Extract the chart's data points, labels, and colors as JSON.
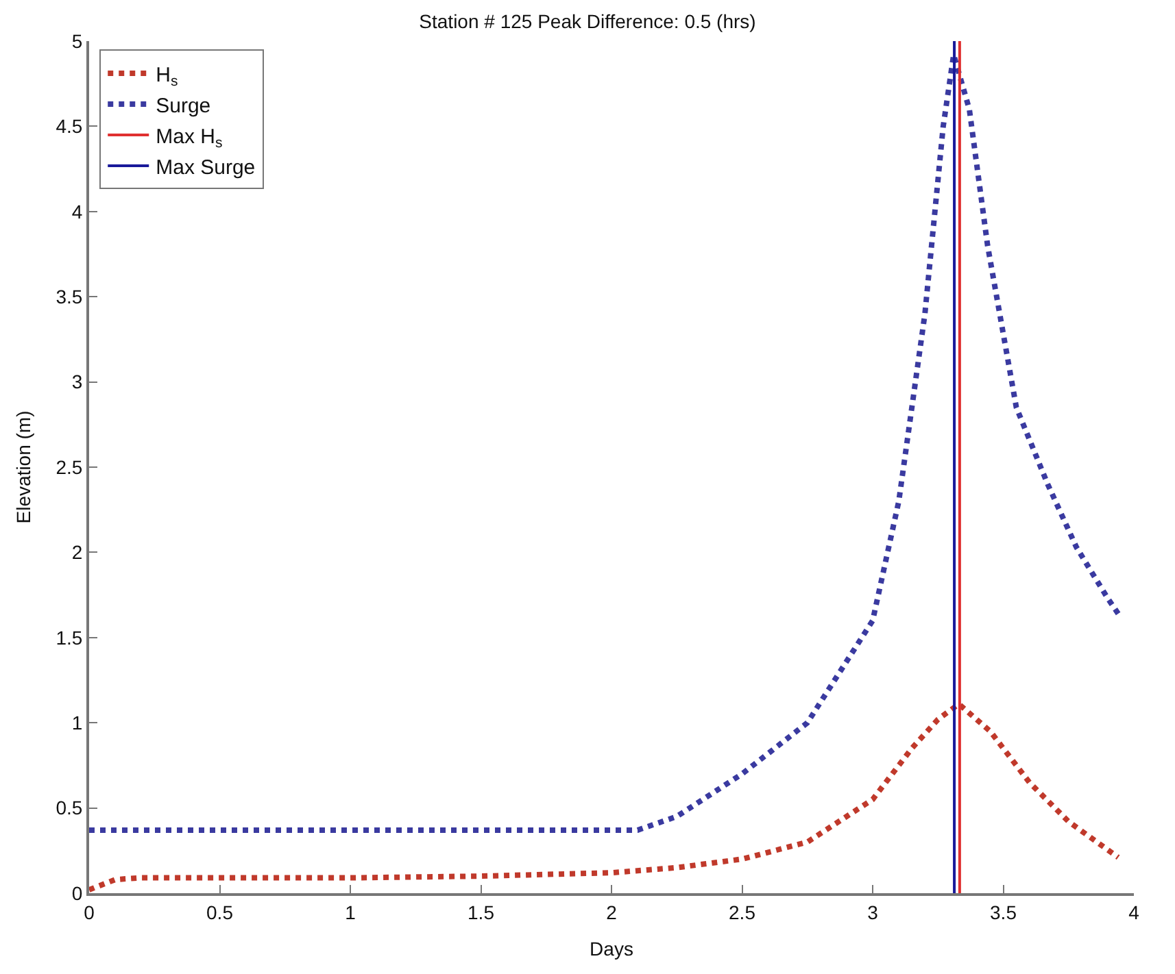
{
  "chart_data": {
    "type": "line",
    "title": "Station # 125 Peak Difference: 0.5 (hrs)",
    "xlabel": "Days",
    "ylabel": "Elevation (m)",
    "xlim": [
      0,
      4
    ],
    "xticks": [
      0,
      0.5,
      1,
      1.5,
      2,
      2.5,
      3,
      3.5,
      4
    ],
    "ylim": [
      0,
      5
    ],
    "yticks": [
      0,
      0.5,
      1,
      1.5,
      2,
      2.5,
      3,
      3.5,
      4,
      4.5,
      5
    ],
    "legend": "top left",
    "marker": "none",
    "series": [
      {
        "name": "H$_{s}$",
        "color": "#c0392b",
        "line_style": "dotted",
        "x": [
          0,
          0.1,
          0.2,
          0.5,
          1,
          1.5,
          2,
          2.25,
          2.5,
          2.75,
          3,
          3.15,
          3.25,
          3.33,
          3.45,
          3.6,
          3.75,
          3.94
        ],
        "values": [
          0.02,
          0.08,
          0.09,
          0.09,
          0.09,
          0.1,
          0.12,
          0.15,
          0.2,
          0.3,
          0.55,
          0.85,
          1.02,
          1.11,
          0.95,
          0.65,
          0.42,
          0.21
        ]
      },
      {
        "name": "Surge",
        "color": "#3a3aa0",
        "line_style": "dotted",
        "x": [
          0,
          0.5,
          1,
          1.5,
          2,
          2.1,
          2.25,
          2.5,
          2.75,
          3,
          3.1,
          3.2,
          3.27,
          3.31,
          3.37,
          3.44,
          3.55,
          3.67,
          3.78,
          3.9,
          3.94
        ],
        "values": [
          0.37,
          0.37,
          0.37,
          0.37,
          0.37,
          0.37,
          0.45,
          0.7,
          1.0,
          1.6,
          2.3,
          3.4,
          4.5,
          4.92,
          4.6,
          3.8,
          2.85,
          2.4,
          2.03,
          1.73,
          1.64
        ]
      },
      {
        "name": "Max H$_{s}$",
        "color": "#e03030",
        "line_style": "solid",
        "x": [
          3.333,
          3.333
        ],
        "values": [
          0,
          5
        ]
      },
      {
        "name": "Max Surge",
        "color": "#1a1a9a",
        "line_style": "solid",
        "x": [
          3.3125,
          3.3125
        ],
        "values": [
          0,
          5
        ]
      }
    ]
  }
}
